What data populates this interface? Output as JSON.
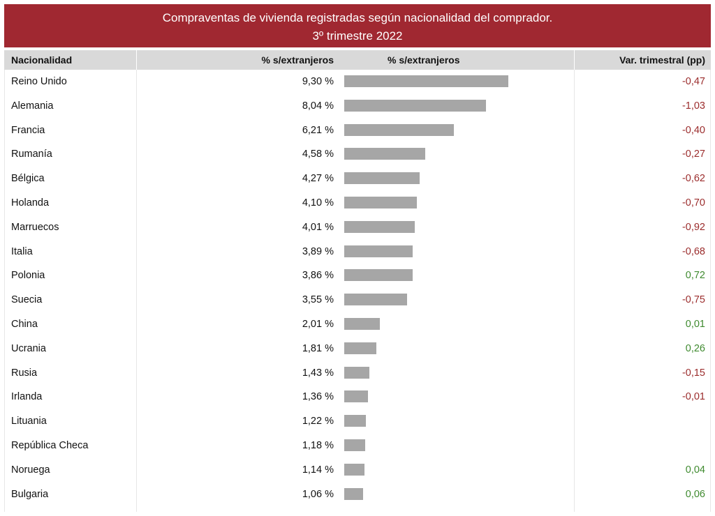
{
  "title": "Compraventas de vivienda registradas según nacionalidad del comprador.",
  "subtitle": "3º trimestre 2022",
  "columns": {
    "nationality": "Nacionalidad",
    "pct": "% s/extranjeros",
    "pct_bar": "% s/extranjeros",
    "var": "Var. trimestral (pp)"
  },
  "colors": {
    "title_bg": "#a02831",
    "header_bg": "#d9d9d9",
    "bar": "#a6a6a6",
    "negative": "#9b2c2c",
    "positive": "#3f8a2f"
  },
  "chart_data": {
    "type": "bar",
    "title": "Compraventas de vivienda registradas según nacionalidad del comprador.",
    "subtitle": "3º trimestre 2022",
    "orientation": "horizontal",
    "categories": [
      "Reino Unido",
      "Alemania",
      "Francia",
      "Rumanía",
      "Bélgica",
      "Holanda",
      "Marruecos",
      "Italia",
      "Polonia",
      "Suecia",
      "China",
      "Ucrania",
      "Rusia",
      "Irlanda",
      "Lituania",
      "República Checa",
      "Noruega",
      "Bulgaria"
    ],
    "values": [
      9.3,
      8.04,
      6.21,
      4.58,
      4.27,
      4.1,
      4.01,
      3.89,
      3.86,
      3.55,
      2.01,
      1.81,
      1.43,
      1.36,
      1.22,
      1.18,
      1.14,
      1.06
    ],
    "value_labels": [
      "9,30 %",
      "8,04 %",
      "6,21 %",
      "4,58 %",
      "4,27 %",
      "4,10 %",
      "4,01 %",
      "3,89 %",
      "3,86 %",
      "3,55 %",
      "2,01 %",
      "1,81 %",
      "1,43 %",
      "1,36 %",
      "1,22 %",
      "1,18 %",
      "1,14 %",
      "1,06 %"
    ],
    "variation": [
      -0.47,
      -1.03,
      -0.4,
      -0.27,
      -0.62,
      -0.7,
      -0.92,
      -0.68,
      0.72,
      -0.75,
      0.01,
      0.26,
      -0.15,
      -0.01,
      null,
      null,
      0.04,
      0.06
    ],
    "variation_labels": [
      "-0,47",
      "-1,03",
      "-0,40",
      "-0,27",
      "-0,62",
      "-0,70",
      "-0,92",
      "-0,68",
      "0,72",
      "-0,75",
      "0,01",
      "0,26",
      "-0,15",
      "-0,01",
      "",
      "",
      "0,04",
      "0,06"
    ],
    "grid": false
  }
}
